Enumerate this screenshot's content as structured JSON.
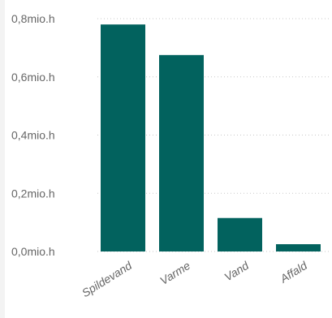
{
  "chart_data": {
    "type": "bar",
    "title": "",
    "xlabel": "",
    "ylabel": "",
    "categories": [
      "Spildevand",
      "Varme",
      "Vand",
      "Affald"
    ],
    "values": [
      0.78,
      0.675,
      0.115,
      0.025
    ],
    "value_unit": "mio.h",
    "ylim": [
      0,
      0.8
    ],
    "yticks": [
      0,
      0.2,
      0.4,
      0.6,
      0.8
    ],
    "ytick_labels": [
      "0,0mio.h",
      "0,2mio.h",
      "0,4mio.h",
      "0,6mio.h",
      "0,8mio.h"
    ],
    "grid": true,
    "bar_color": "#02625e",
    "legend": "none"
  }
}
